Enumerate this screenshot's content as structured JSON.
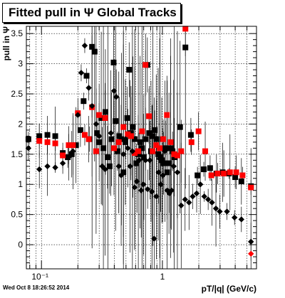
{
  "chart_data": {
    "type": "scatter",
    "title": "Fitted pull in Ψ   Global Tracks",
    "xlabel": "pT/|q| (GeV/c)",
    "ylabel": "pull in Ψ",
    "x_scale": "log",
    "xlim": [
      0.075,
      6.0
    ],
    "ylim": [
      -0.4,
      3.62
    ],
    "x_tick_labels": [
      "10⁻¹",
      "1"
    ],
    "y_tick_labels": [
      "0",
      "0.5",
      "1",
      "1.5",
      "2",
      "2.5",
      "3",
      "3.5"
    ],
    "grid": true,
    "footer": "Wed Oct  8 18:26:52 2014",
    "series": [
      {
        "marker": "square",
        "color": "#000000",
        "points": [
          [
            0.078,
            1.75
          ],
          [
            0.096,
            1.8
          ],
          [
            0.112,
            1.82
          ],
          [
            0.13,
            1.8
          ],
          [
            0.15,
            1.52
          ],
          [
            0.165,
            1.45
          ],
          [
            0.178,
            1.5
          ],
          [
            0.193,
            1.65
          ],
          [
            0.21,
            1.9
          ],
          [
            0.223,
            2.38
          ],
          [
            0.236,
            2.8
          ],
          [
            0.25,
            1.75
          ],
          [
            0.262,
            3.28
          ],
          [
            0.275,
            3.2
          ],
          [
            0.288,
            1.85
          ],
          [
            0.3,
            1.7
          ],
          [
            0.312,
            2.1
          ],
          [
            0.325,
            1.6
          ],
          [
            0.338,
            2.2
          ],
          [
            0.352,
            1.45
          ],
          [
            0.366,
            1.3
          ],
          [
            0.38,
            1.75
          ],
          [
            0.395,
            3.02
          ],
          [
            0.41,
            2.05
          ],
          [
            0.425,
            1.55
          ],
          [
            0.44,
            1.8
          ],
          [
            0.458,
            1.75
          ],
          [
            0.476,
            1.2
          ],
          [
            0.494,
            1.7
          ],
          [
            0.512,
            2.1
          ],
          [
            0.531,
            2.9
          ],
          [
            0.55,
            1.85
          ],
          [
            0.57,
            1.95
          ],
          [
            0.59,
            1.75
          ],
          [
            0.61,
            1.35
          ],
          [
            0.632,
            1.5
          ],
          [
            0.655,
            1.7
          ],
          [
            0.678,
            1.6
          ],
          [
            0.702,
            1.45
          ],
          [
            0.726,
            1.75
          ],
          [
            0.751,
            2.98
          ],
          [
            0.778,
            1.85
          ],
          [
            0.805,
            1.55
          ],
          [
            0.833,
            1.8
          ],
          [
            0.862,
            1.9
          ],
          [
            0.892,
            1.75
          ],
          [
            0.923,
            1.5
          ],
          [
            0.955,
            1.45
          ],
          [
            0.988,
            1.4
          ],
          [
            1.022,
            1.35
          ],
          [
            1.058,
            1.6
          ],
          [
            1.095,
            1.2
          ],
          [
            1.133,
            1.35
          ],
          [
            1.172,
            1.6
          ],
          [
            1.213,
            1.55
          ],
          [
            1.255,
            1.45
          ],
          [
            1.4,
            1.95
          ],
          [
            1.55,
            3.27
          ],
          [
            1.72,
            1.82
          ],
          [
            1.95,
            1.15
          ],
          [
            2.2,
            1.25
          ],
          [
            2.48,
            1.27
          ],
          [
            2.8,
            1.18
          ],
          [
            3.15,
            1.2
          ],
          [
            3.55,
            1.18
          ],
          [
            4.0,
            1.12
          ],
          [
            4.5,
            1.05
          ],
          [
            5.4,
            0.97
          ]
        ]
      },
      {
        "marker": "square",
        "color": "#ff0000",
        "points": [
          [
            0.096,
            1.72
          ],
          [
            0.112,
            1.7
          ],
          [
            0.13,
            1.68
          ],
          [
            0.15,
            1.48
          ],
          [
            0.168,
            1.65
          ],
          [
            0.182,
            1.65
          ],
          [
            0.2,
            2.18
          ],
          [
            0.228,
            1.82
          ],
          [
            0.246,
            1.75
          ],
          [
            0.262,
            2.28
          ],
          [
            0.283,
            1.55
          ],
          [
            0.3,
            2.15
          ],
          [
            0.336,
            2.1
          ],
          [
            0.398,
            1.6
          ],
          [
            0.436,
            1.7
          ],
          [
            0.476,
            1.95
          ],
          [
            0.517,
            1.83
          ],
          [
            0.55,
            1.8
          ],
          [
            0.59,
            1.52
          ],
          [
            0.632,
            1.55
          ],
          [
            0.678,
            1.88
          ],
          [
            0.725,
            2.98
          ],
          [
            0.775,
            2.13
          ],
          [
            0.83,
            1.55
          ],
          [
            0.889,
            1.65
          ],
          [
            0.95,
            1.6
          ],
          [
            1.015,
            1.75
          ],
          [
            1.09,
            2.15
          ],
          [
            1.17,
            1.7
          ],
          [
            1.25,
            1.5
          ],
          [
            1.33,
            1.48
          ],
          [
            1.43,
            1.55
          ],
          [
            1.55,
            3.58
          ],
          [
            1.74,
            1.7
          ],
          [
            1.99,
            1.88
          ],
          [
            2.26,
            1.55
          ],
          [
            2.54,
            1.15
          ],
          [
            2.86,
            1.18
          ],
          [
            3.22,
            1.18
          ],
          [
            3.62,
            1.2
          ],
          [
            4.08,
            1.2
          ],
          [
            4.6,
            1.15
          ],
          [
            5.4,
            0.95
          ]
        ]
      },
      {
        "marker": "diamond",
        "color": "#000000",
        "points": [
          [
            0.078,
            1.6
          ],
          [
            0.096,
            1.25
          ],
          [
            0.112,
            1.3
          ],
          [
            0.13,
            1.28
          ],
          [
            0.15,
            1.35
          ],
          [
            0.168,
            1.45
          ],
          [
            0.182,
            1.55
          ],
          [
            0.2,
            2.15
          ],
          [
            0.213,
            2.85
          ],
          [
            0.228,
            3.3
          ],
          [
            0.246,
            2.6
          ],
          [
            0.262,
            2.3
          ],
          [
            0.283,
            2.0
          ],
          [
            0.3,
            1.8
          ],
          [
            0.318,
            1.3
          ],
          [
            0.336,
            1.25
          ],
          [
            0.355,
            1.45
          ],
          [
            0.375,
            1.85
          ],
          [
            0.398,
            2.55
          ],
          [
            0.415,
            2.45
          ],
          [
            0.436,
            1.3
          ],
          [
            0.456,
            1.15
          ],
          [
            0.476,
            1.5
          ],
          [
            0.496,
            1.75
          ],
          [
            0.517,
            1.6
          ],
          [
            0.54,
            1.3
          ],
          [
            0.565,
            1.55
          ],
          [
            0.59,
            0.95
          ],
          [
            0.615,
            1.05
          ],
          [
            0.641,
            1.4
          ],
          [
            0.668,
            0.9
          ],
          [
            0.697,
            1.0
          ],
          [
            0.725,
            1.4
          ],
          [
            0.755,
            0.92
          ],
          [
            0.787,
            1.4
          ],
          [
            0.82,
            0.88
          ],
          [
            0.855,
            0.1
          ],
          [
            0.891,
            0.8
          ],
          [
            0.929,
            1.2
          ],
          [
            0.968,
            1.0
          ],
          [
            1.009,
            1.15
          ],
          [
            1.05,
            1.55
          ],
          [
            1.095,
            0.9
          ],
          [
            1.14,
            0.85
          ],
          [
            1.19,
            0.9
          ],
          [
            1.24,
            1.3
          ],
          [
            1.33,
            1.2
          ],
          [
            1.43,
            0.65
          ],
          [
            1.54,
            0.75
          ],
          [
            1.66,
            0.7
          ],
          [
            1.78,
            0.8
          ],
          [
            1.92,
            0.85
          ],
          [
            2.06,
            1.0
          ],
          [
            2.22,
            0.8
          ],
          [
            2.39,
            0.75
          ],
          [
            2.57,
            0.7
          ],
          [
            2.77,
            0.6
          ],
          [
            2.98,
            0.55
          ],
          [
            3.42,
            0.55
          ],
          [
            3.95,
            0.45
          ],
          [
            4.5,
            0.42
          ],
          [
            5.4,
            0.05
          ]
        ]
      },
      {
        "marker": "diamond",
        "color": "#ff0000",
        "points": [
          [
            5.4,
            -0.15
          ]
        ]
      }
    ]
  }
}
